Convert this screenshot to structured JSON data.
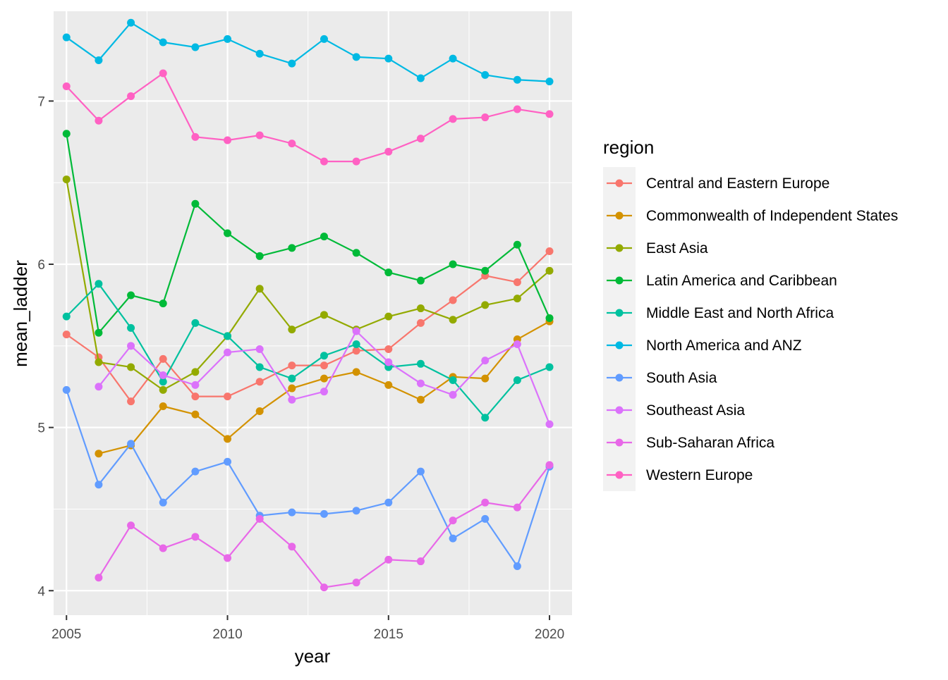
{
  "chart_data": {
    "type": "line",
    "title": "",
    "xlabel": "year",
    "ylabel": "mean_ladder",
    "xlim": [
      2004.6,
      2020.7
    ],
    "ylim": [
      3.85,
      7.55
    ],
    "x_ticks": [
      2005,
      2010,
      2015,
      2020
    ],
    "y_ticks": [
      4,
      5,
      6,
      7
    ],
    "x_tick_labels": [
      "2005",
      "2010",
      "2015",
      "2020"
    ],
    "y_tick_labels": [
      "4",
      "5",
      "6",
      "7"
    ],
    "grid": true,
    "legend": {
      "title": "region",
      "position": "right"
    },
    "series": [
      {
        "name": "Central and Eastern Europe",
        "color": "#F8766D",
        "points": [
          [
            2005,
            5.57
          ],
          [
            2006,
            5.43
          ],
          [
            2007,
            5.16
          ],
          [
            2008,
            5.42
          ],
          [
            2009,
            5.19
          ],
          [
            2010,
            5.19
          ],
          [
            2011,
            5.28
          ],
          [
            2012,
            5.38
          ],
          [
            2013,
            5.38
          ],
          [
            2014,
            5.47
          ],
          [
            2015,
            5.48
          ],
          [
            2016,
            5.64
          ],
          [
            2017,
            5.78
          ],
          [
            2018,
            5.93
          ],
          [
            2019,
            5.89
          ],
          [
            2020,
            6.08
          ]
        ]
      },
      {
        "name": "Commonwealth of Independent States",
        "color": "#D39200",
        "points": [
          [
            2006,
            4.84
          ],
          [
            2007,
            4.89
          ],
          [
            2008,
            5.13
          ],
          [
            2009,
            5.08
          ],
          [
            2010,
            4.93
          ],
          [
            2011,
            5.1
          ],
          [
            2012,
            5.24
          ],
          [
            2013,
            5.3
          ],
          [
            2014,
            5.34
          ],
          [
            2015,
            5.26
          ],
          [
            2016,
            5.17
          ],
          [
            2017,
            5.31
          ],
          [
            2018,
            5.3
          ],
          [
            2019,
            5.54
          ],
          [
            2020,
            5.65
          ]
        ]
      },
      {
        "name": "East Asia",
        "color": "#93AA00",
        "points": [
          [
            2005,
            6.52
          ],
          [
            2006,
            5.4
          ],
          [
            2007,
            5.37
          ],
          [
            2008,
            5.23
          ],
          [
            2009,
            5.34
          ],
          [
            2010,
            5.56
          ],
          [
            2011,
            5.85
          ],
          [
            2012,
            5.6
          ],
          [
            2013,
            5.69
          ],
          [
            2014,
            5.6
          ],
          [
            2015,
            5.68
          ],
          [
            2016,
            5.73
          ],
          [
            2017,
            5.66
          ],
          [
            2018,
            5.75
          ],
          [
            2019,
            5.79
          ],
          [
            2020,
            5.96
          ]
        ]
      },
      {
        "name": "Latin America and Caribbean",
        "color": "#00BA38",
        "points": [
          [
            2005,
            6.8
          ],
          [
            2006,
            5.58
          ],
          [
            2007,
            5.81
          ],
          [
            2008,
            5.76
          ],
          [
            2009,
            6.37
          ],
          [
            2010,
            6.19
          ],
          [
            2011,
            6.05
          ],
          [
            2012,
            6.1
          ],
          [
            2013,
            6.17
          ],
          [
            2014,
            6.07
          ],
          [
            2015,
            5.95
          ],
          [
            2016,
            5.9
          ],
          [
            2017,
            6.0
          ],
          [
            2018,
            5.96
          ],
          [
            2019,
            6.12
          ],
          [
            2020,
            5.67
          ]
        ]
      },
      {
        "name": "Middle East and North Africa",
        "color": "#00C19F",
        "points": [
          [
            2005,
            5.68
          ],
          [
            2006,
            5.88
          ],
          [
            2007,
            5.61
          ],
          [
            2008,
            5.28
          ],
          [
            2009,
            5.64
          ],
          [
            2010,
            5.56
          ],
          [
            2011,
            5.37
          ],
          [
            2012,
            5.3
          ],
          [
            2013,
            5.44
          ],
          [
            2014,
            5.51
          ],
          [
            2015,
            5.37
          ],
          [
            2016,
            5.39
          ],
          [
            2017,
            5.29
          ],
          [
            2018,
            5.06
          ],
          [
            2019,
            5.29
          ],
          [
            2020,
            5.37
          ]
        ]
      },
      {
        "name": "North America and ANZ",
        "color": "#00B9E3",
        "points": [
          [
            2005,
            7.39
          ],
          [
            2006,
            7.25
          ],
          [
            2007,
            7.48
          ],
          [
            2008,
            7.36
          ],
          [
            2009,
            7.33
          ],
          [
            2010,
            7.38
          ],
          [
            2011,
            7.29
          ],
          [
            2012,
            7.23
          ],
          [
            2013,
            7.38
          ],
          [
            2014,
            7.27
          ],
          [
            2015,
            7.26
          ],
          [
            2016,
            7.14
          ],
          [
            2017,
            7.26
          ],
          [
            2018,
            7.16
          ],
          [
            2019,
            7.13
          ],
          [
            2020,
            7.12
          ]
        ]
      },
      {
        "name": "South Asia",
        "color": "#619CFF",
        "points": [
          [
            2005,
            5.23
          ],
          [
            2006,
            4.65
          ],
          [
            2007,
            4.9
          ],
          [
            2008,
            4.54
          ],
          [
            2009,
            4.73
          ],
          [
            2010,
            4.79
          ],
          [
            2011,
            4.46
          ],
          [
            2012,
            4.48
          ],
          [
            2013,
            4.47
          ],
          [
            2014,
            4.49
          ],
          [
            2015,
            4.54
          ],
          [
            2016,
            4.73
          ],
          [
            2017,
            4.32
          ],
          [
            2018,
            4.44
          ],
          [
            2019,
            4.15
          ],
          [
            2020,
            4.76
          ]
        ]
      },
      {
        "name": "Southeast Asia",
        "color": "#DB72FB",
        "points": [
          [
            2006,
            5.25
          ],
          [
            2007,
            5.5
          ],
          [
            2008,
            5.32
          ],
          [
            2009,
            5.26
          ],
          [
            2010,
            5.46
          ],
          [
            2011,
            5.48
          ],
          [
            2012,
            5.17
          ],
          [
            2013,
            5.22
          ],
          [
            2014,
            5.59
          ],
          [
            2015,
            5.4
          ],
          [
            2016,
            5.27
          ],
          [
            2017,
            5.2
          ],
          [
            2018,
            5.41
          ],
          [
            2019,
            5.51
          ],
          [
            2020,
            5.02
          ]
        ]
      },
      {
        "name": "Sub-Saharan Africa",
        "color": "#E868E8",
        "points": [
          [
            2006,
            4.08
          ],
          [
            2007,
            4.4
          ],
          [
            2008,
            4.26
          ],
          [
            2009,
            4.33
          ],
          [
            2010,
            4.2
          ],
          [
            2011,
            4.44
          ],
          [
            2012,
            4.27
          ],
          [
            2013,
            4.02
          ],
          [
            2014,
            4.05
          ],
          [
            2015,
            4.19
          ],
          [
            2016,
            4.18
          ],
          [
            2017,
            4.43
          ],
          [
            2018,
            4.54
          ],
          [
            2019,
            4.51
          ],
          [
            2020,
            4.77
          ]
        ]
      },
      {
        "name": "Western Europe",
        "color": "#FF61C3",
        "points": [
          [
            2005,
            7.09
          ],
          [
            2006,
            6.88
          ],
          [
            2007,
            7.03
          ],
          [
            2008,
            7.17
          ],
          [
            2009,
            6.78
          ],
          [
            2010,
            6.76
          ],
          [
            2011,
            6.79
          ],
          [
            2012,
            6.74
          ],
          [
            2013,
            6.63
          ],
          [
            2014,
            6.63
          ],
          [
            2015,
            6.69
          ],
          [
            2016,
            6.77
          ],
          [
            2017,
            6.89
          ],
          [
            2018,
            6.9
          ],
          [
            2019,
            6.95
          ],
          [
            2020,
            6.92
          ]
        ]
      }
    ]
  }
}
